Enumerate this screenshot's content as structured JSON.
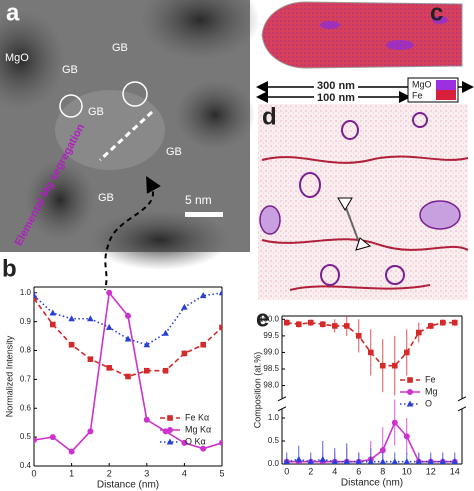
{
  "panel_labels": [
    "a",
    "b",
    "c",
    "d",
    "e"
  ],
  "image_a": {
    "labels": [
      "MgO",
      "GB",
      "GB",
      "GB",
      "GB",
      "GB"
    ],
    "scale_bar": "5 nm",
    "annotation": "Elemental Mg segregation"
  },
  "image_c": {
    "legend": [
      "MgO",
      "Fe"
    ]
  },
  "scale_bars": [
    "300 nm",
    "100 nm"
  ],
  "chart_data": [
    {
      "type": "line",
      "xlabel": "Distance (nm)",
      "ylabel": "Normalized Intensity",
      "x": [
        0,
        0.5,
        1,
        1.5,
        2,
        2.5,
        3,
        3.5,
        4,
        4.5,
        5
      ],
      "xlim": [
        0,
        5
      ],
      "xticks": [
        0,
        1,
        2,
        3,
        4,
        5
      ],
      "ylim": [
        0.4,
        1.02
      ],
      "yticks": [
        0.4,
        0.5,
        0.6,
        0.7,
        0.8,
        0.9,
        {
          "value": 1,
          "label": "1.0"
        }
      ],
      "legend": "lower right",
      "series": [
        {
          "name": "Fe Kα",
          "color": "#d42a2a",
          "marker": "square",
          "line": "dashed",
          "values": [
            0.98,
            0.89,
            0.82,
            0.77,
            0.74,
            0.71,
            0.73,
            0.73,
            0.79,
            0.82,
            0.88
          ]
        },
        {
          "name": "Mg Kα",
          "color": "#cc33cc",
          "marker": "circle",
          "line": "solid",
          "values": [
            0.49,
            0.5,
            0.45,
            0.52,
            1.0,
            0.92,
            0.56,
            0.52,
            0.48,
            0.46,
            0.48
          ]
        },
        {
          "name": "O Kα",
          "color": "#2a3fd4",
          "marker": "triangle",
          "line": "dotted",
          "values": [
            0.99,
            0.93,
            0.91,
            0.91,
            0.88,
            0.84,
            0.82,
            0.86,
            0.95,
            0.99,
            1.0
          ]
        }
      ]
    },
    {
      "type": "line",
      "xlabel": "Distance (nm)",
      "ylabel": "Composition (at.%)",
      "x": [
        0,
        1,
        2,
        3,
        4,
        5,
        6,
        7,
        8,
        9,
        10,
        11,
        12,
        13,
        14
      ],
      "xlim": [
        -0.4,
        14.6
      ],
      "xticks": [
        0,
        2,
        4,
        6,
        8,
        10,
        12,
        14
      ],
      "ylim_segments": [
        [
          0,
          1.2
        ],
        [
          97.6,
          100.1
        ]
      ],
      "yticks": [
        {
          "value": 0,
          "label": "0.0"
        },
        0.5,
        {
          "value": 1,
          "label": "1.0"
        },
        {
          "value": 98,
          "label": "98.0"
        },
        98.5,
        {
          "value": 99,
          "label": "99.0"
        },
        99.5,
        {
          "value": 100,
          "label": "100.0"
        }
      ],
      "legend": "center right",
      "series": [
        {
          "name": "Fe",
          "color": "#d42a2a",
          "marker": "square",
          "line": "dashed",
          "values": [
            99.9,
            99.85,
            99.9,
            99.85,
            99.8,
            99.8,
            99.5,
            99.0,
            98.6,
            98.6,
            99.0,
            99.6,
            99.8,
            99.9,
            99.9
          ],
          "errors": [
            0.1,
            0.1,
            0.1,
            0.1,
            0.2,
            0.3,
            0.5,
            0.7,
            0.8,
            0.9,
            0.7,
            0.3,
            0.1,
            0.1,
            0.1
          ]
        },
        {
          "name": "Mg",
          "color": "#cc33cc",
          "marker": "circle",
          "line": "solid",
          "values": [
            0.05,
            0.05,
            0.05,
            0.05,
            0.05,
            0.05,
            0.05,
            0.1,
            0.3,
            0.9,
            0.6,
            0.05,
            0.05,
            0.05,
            0.05
          ],
          "errors": [
            0.1,
            0.1,
            0.1,
            0.2,
            0.2,
            0.3,
            0.2,
            0.4,
            0.5,
            0.5,
            0.4,
            0.2,
            0.1,
            0.1,
            0.1
          ]
        },
        {
          "name": "O",
          "color": "#2a3fd4",
          "marker": "triangle",
          "line": "dotted",
          "values": [
            0.05,
            0.1,
            0.05,
            0.1,
            0.05,
            0.05,
            0.05,
            0.05,
            0.05,
            0.05,
            0.05,
            0.05,
            0.05,
            0.05,
            0.05
          ],
          "errors": [
            0.2,
            0.3,
            0.2,
            0.4,
            0.3,
            0.4,
            0.2,
            0.3,
            0.2,
            0.2,
            0.2,
            0.2,
            0.2,
            0.2,
            0.2
          ]
        }
      ]
    }
  ]
}
